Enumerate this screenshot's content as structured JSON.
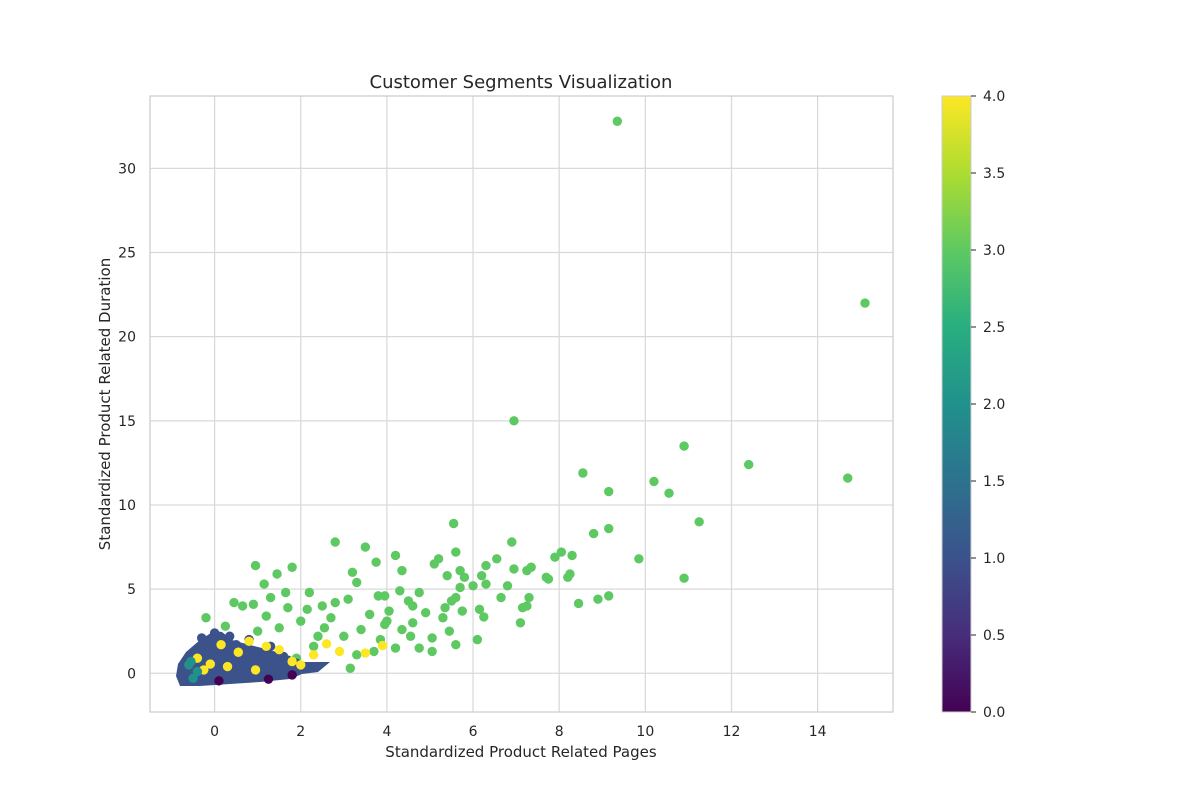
{
  "chart_data": {
    "type": "scatter",
    "title": "Customer Segments Visualization",
    "xlabel": "Standardized Product Related Pages",
    "ylabel": "Standardized Product Related Duration",
    "xlim": [
      -1.5,
      15.75
    ],
    "ylim": [
      -2.3,
      34.3
    ],
    "xticks": [
      0,
      2,
      4,
      6,
      8,
      10,
      12,
      14
    ],
    "yticks": [
      0,
      5,
      10,
      15,
      20,
      25,
      30
    ],
    "grid": true,
    "colormap": "viridis",
    "colorbar": {
      "range": [
        0.0,
        4.0
      ],
      "ticks": [
        "0.0",
        "0.5",
        "1.0",
        "1.5",
        "2.0",
        "2.5",
        "3.0",
        "3.5",
        "4.0"
      ]
    },
    "series": [
      {
        "cluster": 3,
        "color": "#5ec962",
        "points": [
          [
            9.35,
            32.8
          ],
          [
            15.1,
            22.0
          ],
          [
            6.95,
            15.0
          ],
          [
            10.9,
            13.5
          ],
          [
            12.4,
            12.4
          ],
          [
            8.55,
            11.9
          ],
          [
            14.7,
            11.6
          ],
          [
            10.2,
            11.4
          ],
          [
            9.15,
            10.8
          ],
          [
            10.55,
            10.7
          ],
          [
            11.25,
            9.0
          ],
          [
            5.55,
            8.9
          ],
          [
            9.15,
            8.6
          ],
          [
            8.8,
            8.3
          ],
          [
            2.8,
            7.8
          ],
          [
            6.9,
            7.8
          ],
          [
            3.5,
            7.5
          ],
          [
            5.6,
            7.2
          ],
          [
            8.05,
            7.2
          ],
          [
            8.3,
            7.0
          ],
          [
            7.9,
            6.9
          ],
          [
            4.2,
            7.0
          ],
          [
            9.85,
            6.8
          ],
          [
            5.2,
            6.8
          ],
          [
            6.55,
            6.8
          ],
          [
            0.95,
            6.4
          ],
          [
            3.75,
            6.6
          ],
          [
            6.3,
            6.4
          ],
          [
            1.8,
            6.3
          ],
          [
            5.1,
            6.5
          ],
          [
            7.35,
            6.3
          ],
          [
            6.95,
            6.2
          ],
          [
            7.25,
            6.1
          ],
          [
            4.35,
            6.1
          ],
          [
            5.7,
            6.1
          ],
          [
            1.45,
            5.9
          ],
          [
            8.25,
            5.9
          ],
          [
            3.2,
            6.0
          ],
          [
            5.4,
            5.8
          ],
          [
            6.2,
            5.8
          ],
          [
            5.8,
            5.7
          ],
          [
            7.7,
            5.7
          ],
          [
            10.9,
            5.65
          ],
          [
            8.2,
            5.7
          ],
          [
            7.75,
            5.6
          ],
          [
            1.15,
            5.3
          ],
          [
            3.3,
            5.4
          ],
          [
            6.3,
            5.3
          ],
          [
            6.8,
            5.2
          ],
          [
            5.7,
            5.1
          ],
          [
            6.0,
            5.2
          ],
          [
            1.65,
            4.8
          ],
          [
            2.2,
            4.8
          ],
          [
            4.75,
            4.8
          ],
          [
            3.95,
            4.6
          ],
          [
            9.15,
            4.6
          ],
          [
            8.9,
            4.4
          ],
          [
            6.65,
            4.5
          ],
          [
            7.3,
            4.5
          ],
          [
            5.6,
            4.5
          ],
          [
            8.45,
            4.15
          ],
          [
            0.45,
            4.2
          ],
          [
            1.3,
            4.5
          ],
          [
            4.5,
            4.3
          ],
          [
            5.5,
            4.3
          ],
          [
            7.25,
            4.0
          ],
          [
            0.65,
            4.0
          ],
          [
            0.9,
            4.1
          ],
          [
            3.1,
            4.4
          ],
          [
            2.5,
            4.0
          ],
          [
            6.15,
            3.8
          ],
          [
            7.15,
            3.9
          ],
          [
            5.35,
            3.9
          ],
          [
            5.75,
            3.7
          ],
          [
            4.9,
            3.6
          ],
          [
            -0.2,
            3.3
          ],
          [
            6.25,
            3.35
          ],
          [
            7.1,
            3.0
          ],
          [
            5.3,
            3.3
          ],
          [
            4.6,
            3.0
          ],
          [
            5.45,
            2.5
          ],
          [
            3.95,
            2.9
          ],
          [
            4.35,
            2.6
          ],
          [
            0.25,
            2.8
          ],
          [
            5.05,
            2.1
          ],
          [
            3.85,
            2.0
          ],
          [
            6.1,
            2.0
          ],
          [
            4.55,
            2.2
          ],
          [
            5.6,
            1.7
          ],
          [
            2.4,
            2.2
          ],
          [
            4.2,
            1.5
          ],
          [
            4.75,
            1.5
          ],
          [
            3.7,
            1.3
          ],
          [
            5.05,
            1.3
          ],
          [
            3.15,
            0.3
          ],
          [
            1.9,
            0.9
          ],
          [
            3.3,
            1.1
          ],
          [
            2.3,
            1.6
          ],
          [
            1.5,
            2.7
          ],
          [
            3.6,
            3.5
          ],
          [
            2.7,
            3.3
          ],
          [
            4.05,
            3.7
          ],
          [
            2.0,
            3.1
          ],
          [
            1.0,
            2.5
          ],
          [
            1.7,
            3.9
          ],
          [
            2.55,
            2.7
          ],
          [
            4.6,
            4.0
          ],
          [
            3.0,
            2.2
          ],
          [
            4.0,
            3.1
          ],
          [
            2.15,
            3.8
          ],
          [
            3.4,
            2.6
          ],
          [
            1.2,
            3.4
          ],
          [
            2.8,
            4.2
          ],
          [
            3.8,
            4.6
          ],
          [
            4.3,
            4.9
          ]
        ]
      },
      {
        "cluster": 1,
        "color": "#3b528b",
        "points": [
          [
            0.0,
            2.4
          ],
          [
            -0.3,
            2.1
          ],
          [
            0.35,
            2.2
          ],
          [
            0.8,
            2.0
          ],
          [
            1.3,
            1.6
          ],
          [
            0.5,
            1.7
          ],
          [
            -0.1,
            1.5
          ],
          [
            1.0,
            1.2
          ],
          [
            1.6,
            1.0
          ],
          [
            1.9,
            0.6
          ],
          [
            2.1,
            0.3
          ],
          [
            0.3,
            1.0
          ],
          [
            -0.5,
            0.6
          ],
          [
            0.6,
            0.4
          ],
          [
            1.2,
            0.3
          ],
          [
            0.1,
            0.1
          ],
          [
            -0.6,
            -0.2
          ],
          [
            -0.3,
            0.4
          ],
          [
            0.9,
            0.7
          ],
          [
            1.5,
            0.2
          ],
          [
            0.2,
            -0.3
          ],
          [
            0.7,
            -0.2
          ],
          [
            1.1,
            0.0
          ],
          [
            -0.2,
            -0.4
          ],
          [
            0.4,
            0.2
          ]
        ]
      },
      {
        "cluster": 4,
        "color": "#fde725",
        "points": [
          [
            3.9,
            1.65
          ],
          [
            -0.4,
            0.9
          ],
          [
            0.8,
            1.9
          ],
          [
            1.5,
            1.4
          ],
          [
            2.3,
            1.1
          ],
          [
            0.3,
            0.4
          ],
          [
            0.95,
            0.2
          ],
          [
            -0.1,
            0.55
          ],
          [
            0.55,
            1.25
          ],
          [
            1.8,
            0.7
          ],
          [
            2.9,
            1.3
          ],
          [
            1.2,
            1.6
          ],
          [
            -0.25,
            0.2
          ],
          [
            2.0,
            0.5
          ],
          [
            0.15,
            1.7
          ],
          [
            3.5,
            1.2
          ],
          [
            2.6,
            1.75
          ]
        ]
      },
      {
        "cluster": 2,
        "color": "#21918c",
        "points": [
          [
            -0.6,
            0.5
          ],
          [
            -0.5,
            -0.3
          ],
          [
            -0.4,
            0.1
          ],
          [
            -0.55,
            0.7
          ]
        ]
      },
      {
        "cluster": 0,
        "color": "#440154",
        "points": [
          [
            1.25,
            -0.35
          ],
          [
            0.1,
            -0.45
          ],
          [
            1.8,
            -0.1
          ]
        ]
      }
    ]
  }
}
